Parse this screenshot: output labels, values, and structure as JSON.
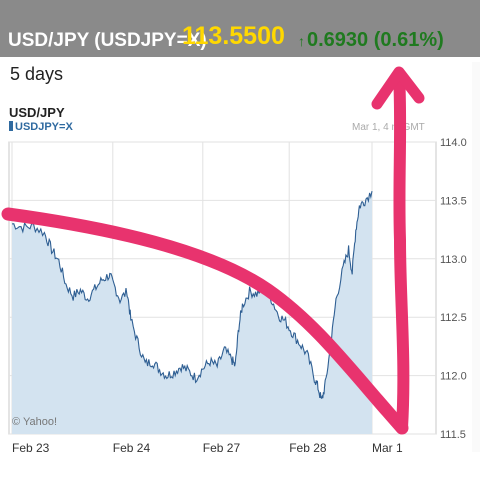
{
  "quote": {
    "symbol": "USD/JPY (USDJPY=X)",
    "price": "113.5500",
    "change": "0.6930 (0.61%)",
    "change_icon": "up-arrow-icon",
    "change_color": "#1f7a1f",
    "price_color": "#ffd800",
    "bar_color": "#8a8a8a"
  },
  "range_label": "5 days",
  "chart_title": "USD/JPY",
  "legend_label": "USDJPY=X",
  "timestamp": "Mar 1, 4 m GMT",
  "credit": "© Yahoo!",
  "annotation": {
    "description": "hand-drawn pink curve with upward arrow",
    "color": "#e8336e"
  },
  "chart_data": {
    "type": "area",
    "title": "USD/JPY",
    "series": [
      {
        "name": "USDJPY=X",
        "color": "#2f5f93",
        "fill": "#d3e3f0",
        "points": [
          [
            0.0,
            113.3
          ],
          [
            0.03,
            113.27
          ],
          [
            0.06,
            113.28
          ],
          [
            0.09,
            113.22
          ],
          [
            0.11,
            113.08
          ],
          [
            0.13,
            112.98
          ],
          [
            0.15,
            112.78
          ],
          [
            0.17,
            112.68
          ],
          [
            0.19,
            112.73
          ],
          [
            0.21,
            112.66
          ],
          [
            0.23,
            112.74
          ],
          [
            0.25,
            112.82
          ],
          [
            0.27,
            112.86
          ],
          [
            0.28,
            112.8
          ],
          [
            0.3,
            112.65
          ],
          [
            0.32,
            112.72
          ],
          [
            0.33,
            112.48
          ],
          [
            0.35,
            112.28
          ],
          [
            0.37,
            112.1
          ],
          [
            0.39,
            112.12
          ],
          [
            0.41,
            112.05
          ],
          [
            0.43,
            112.0
          ],
          [
            0.45,
            112.03
          ],
          [
            0.47,
            112.08
          ],
          [
            0.49,
            112.04
          ],
          [
            0.51,
            111.98
          ],
          [
            0.53,
            112.06
          ],
          [
            0.55,
            112.12
          ],
          [
            0.57,
            112.08
          ],
          [
            0.59,
            112.22
          ],
          [
            0.61,
            112.14
          ],
          [
            0.62,
            112.08
          ],
          [
            0.63,
            112.42
          ],
          [
            0.64,
            112.6
          ],
          [
            0.66,
            112.72
          ],
          [
            0.68,
            112.7
          ],
          [
            0.7,
            112.76
          ],
          [
            0.72,
            112.66
          ],
          [
            0.74,
            112.52
          ],
          [
            0.76,
            112.46
          ],
          [
            0.78,
            112.36
          ],
          [
            0.8,
            112.27
          ],
          [
            0.82,
            112.18
          ],
          [
            0.84,
            111.98
          ],
          [
            0.85,
            111.9
          ],
          [
            0.86,
            111.78
          ],
          [
            0.87,
            111.92
          ],
          [
            0.885,
            112.25
          ],
          [
            0.9,
            112.65
          ],
          [
            0.92,
            112.92
          ],
          [
            0.935,
            113.08
          ],
          [
            0.945,
            112.88
          ],
          [
            0.955,
            113.25
          ],
          [
            0.965,
            113.45
          ],
          [
            0.98,
            113.5
          ],
          [
            1.0,
            113.58
          ]
        ]
      }
    ],
    "x_tick_labels": [
      "Feb 23",
      "Feb 24",
      "Feb 27",
      "Feb 28",
      "Mar 1"
    ],
    "x_tick_positions": [
      0.0,
      0.28,
      0.53,
      0.77,
      1.0
    ],
    "y_ticks": [
      114.0,
      113.5,
      113.0,
      112.5,
      112.0,
      111.5
    ],
    "ylim": [
      111.5,
      114.0
    ],
    "grid": true
  }
}
